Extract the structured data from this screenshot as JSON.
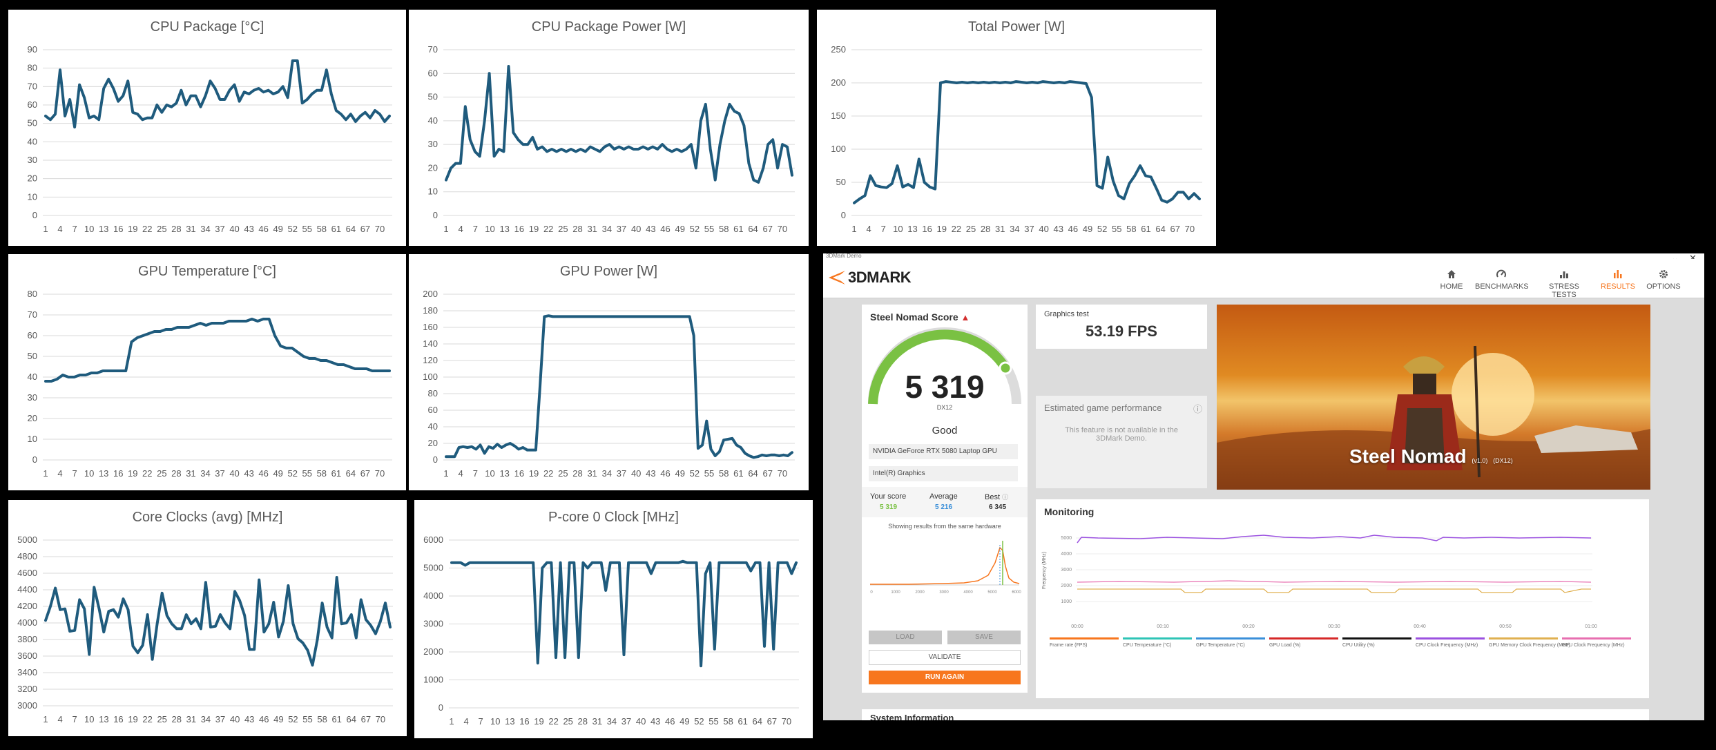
{
  "charts": [
    {
      "id": "cpu-package-temp",
      "title": "CPU Package [°C]",
      "ymin": 0,
      "ymax": 90,
      "ystep": 10,
      "values": [
        54,
        52,
        55,
        79,
        54,
        63,
        48,
        71,
        64,
        53,
        54,
        52,
        69,
        74,
        69,
        62,
        65,
        73,
        56,
        55,
        52,
        53,
        53,
        60,
        56,
        60,
        59,
        61,
        68,
        60,
        65,
        65,
        59,
        65,
        73,
        69,
        63,
        63,
        68,
        71,
        62,
        67,
        66,
        68,
        69,
        67,
        68,
        66,
        67,
        70,
        64,
        84,
        84,
        61,
        63,
        66,
        68,
        68,
        79,
        66,
        57,
        55,
        52,
        55,
        51,
        54,
        56,
        53,
        57,
        55,
        51,
        54
      ]
    },
    {
      "id": "cpu-package-power",
      "title": "CPU Package Power [W]",
      "ymin": 0,
      "ymax": 70,
      "ystep": 10,
      "values": [
        15,
        20,
        22,
        22,
        46,
        32,
        27,
        25,
        40,
        60,
        25,
        28,
        27,
        63,
        35,
        32,
        30,
        30,
        33,
        28,
        29,
        27,
        28,
        27,
        28,
        27,
        28,
        27,
        28,
        27,
        29,
        28,
        27,
        29,
        30,
        28,
        29,
        28,
        29,
        28,
        28,
        29,
        28,
        29,
        28,
        30,
        28,
        27,
        28,
        27,
        28,
        30,
        20,
        40,
        47,
        28,
        15,
        30,
        40,
        47,
        44,
        43,
        38,
        22,
        15,
        14,
        20,
        30,
        32,
        20,
        30,
        29,
        17
      ]
    },
    {
      "id": "total-power",
      "title": "Total Power [W]",
      "ymin": 0,
      "ymax": 250,
      "ystep": 50,
      "values": [
        19,
        25,
        30,
        60,
        45,
        43,
        42,
        48,
        75,
        43,
        47,
        42,
        85,
        50,
        43,
        40,
        200,
        202,
        201,
        200,
        201,
        200,
        201,
        200,
        201,
        200,
        201,
        200,
        201,
        200,
        202,
        201,
        200,
        201,
        200,
        202,
        201,
        200,
        201,
        200,
        202,
        201,
        200,
        199,
        178,
        45,
        41,
        88,
        52,
        30,
        25,
        48,
        60,
        75,
        60,
        58,
        41,
        23,
        20,
        25,
        35,
        35,
        25,
        33,
        25
      ]
    },
    {
      "id": "gpu-temp",
      "title": "GPU Temperature [°C]",
      "ymin": 0,
      "ymax": 80,
      "ystep": 10,
      "values": [
        38,
        38,
        39,
        41,
        40,
        40,
        41,
        41,
        42,
        42,
        43,
        43,
        43,
        43,
        43,
        57,
        59,
        60,
        61,
        62,
        62,
        63,
        63,
        64,
        64,
        64,
        65,
        66,
        65,
        66,
        66,
        66,
        67,
        67,
        67,
        67,
        68,
        67,
        68,
        68,
        60,
        55,
        54,
        54,
        52,
        50,
        49,
        49,
        48,
        48,
        47,
        46,
        46,
        45,
        44,
        44,
        44,
        43,
        43,
        43,
        43
      ]
    },
    {
      "id": "gpu-power",
      "title": "GPU Power [W]",
      "ymin": 0,
      "ymax": 200,
      "ystep": 20,
      "values": [
        4,
        4,
        4,
        15,
        16,
        15,
        16,
        13,
        18,
        8,
        16,
        14,
        19,
        15,
        18,
        20,
        17,
        13,
        15,
        12,
        12,
        12,
        90,
        173,
        174,
        173,
        173,
        173,
        173,
        173,
        173,
        173,
        173,
        173,
        173,
        173,
        173,
        173,
        173,
        173,
        173,
        173,
        173,
        173,
        173,
        173,
        173,
        173,
        173,
        173,
        173,
        173,
        173,
        173,
        173,
        173,
        173,
        173,
        150,
        14,
        18,
        47,
        13,
        5,
        10,
        24,
        25,
        26,
        18,
        15,
        8,
        5,
        3,
        4,
        6,
        5,
        6,
        6,
        5,
        6,
        5,
        9
      ]
    },
    {
      "id": "core-clocks",
      "title": "Core Clocks (avg) [MHz]",
      "ymin": 3000,
      "ymax": 5000,
      "ystep": 200,
      "values": [
        4030,
        4200,
        4420,
        4160,
        4170,
        3900,
        3910,
        4280,
        4170,
        3620,
        4430,
        4180,
        3890,
        4140,
        4160,
        4070,
        4290,
        4160,
        3720,
        3640,
        3730,
        4100,
        3560,
        3990,
        4360,
        4090,
        3990,
        3930,
        3930,
        4100,
        3990,
        4050,
        3930,
        4490,
        3950,
        3960,
        4100,
        4000,
        3930,
        4380,
        4270,
        4090,
        3680,
        3680,
        4520,
        3890,
        3990,
        4250,
        3830,
        4020,
        4450,
        3990,
        3810,
        3760,
        3670,
        3490,
        3800,
        4240,
        3950,
        3820,
        4550,
        3990,
        4000,
        4100,
        3820,
        4280,
        4040,
        3970,
        3870,
        4020,
        4240,
        3950
      ]
    },
    {
      "id": "pcore0-clock",
      "title": "P-core 0 Clock [MHz]",
      "ymin": 0,
      "ymax": 6000,
      "ystep": 1000,
      "values": [
        5190,
        5190,
        5190,
        5100,
        5190,
        5190,
        5190,
        5190,
        5190,
        5190,
        5190,
        5190,
        5190,
        5190,
        5190,
        5190,
        5190,
        5190,
        5190,
        1600,
        5000,
        5190,
        5190,
        1800,
        5190,
        1800,
        5190,
        5190,
        1800,
        5190,
        5000,
        5190,
        5190,
        5190,
        4200,
        5190,
        5190,
        5190,
        1900,
        5190,
        5190,
        5190,
        5190,
        5190,
        4800,
        5190,
        5190,
        5190,
        5190,
        5190,
        5190,
        5240,
        5190,
        5190,
        5190,
        1500,
        4800,
        5190,
        2100,
        5190,
        5190,
        5190,
        5190,
        5190,
        5190,
        5190,
        4900,
        5190,
        5190,
        2200,
        5190,
        2100,
        5190,
        5190,
        5190,
        4800,
        5190
      ]
    }
  ],
  "app": {
    "window_title": "3DMark Demo",
    "brand": "3DMARK",
    "nav": [
      {
        "label": "HOME",
        "icon": "home-icon"
      },
      {
        "label": "BENCHMARKS",
        "icon": "benchmarks-icon"
      },
      {
        "label": "STRESS TESTS",
        "icon": "stress-tests-icon"
      },
      {
        "label": "RESULTS",
        "icon": "results-icon",
        "active": true
      },
      {
        "label": "OPTIONS",
        "icon": "gear-icon"
      }
    ],
    "score_card": {
      "title": "Steel Nomad Score",
      "score": "5 319",
      "api": "DX12",
      "rating": "Good",
      "gpu": "NVIDIA GeForce RTX 5080 Laptop GPU",
      "cpu": "Intel(R) Graphics",
      "your_score_label": "Your score",
      "your_score": "5 319",
      "average_label": "Average",
      "average": "5 216",
      "best_label": "Best",
      "best": "6 345",
      "same_hw_text": "Showing results from the same hardware",
      "load": "LOAD",
      "save": "SAVE",
      "validate": "VALIDATE",
      "run_again": "RUN AGAIN",
      "histogram_ticks": [
        "0",
        "1000",
        "2000",
        "3000",
        "4000",
        "5000",
        "6000"
      ]
    },
    "graphics_test": {
      "label": "Graphics test",
      "fps": "53.19 FPS"
    },
    "estimated": {
      "title": "Estimated game performance",
      "message": "This feature is not available in the 3DMark Demo."
    },
    "banner": {
      "title": "Steel Nomad",
      "version": "(v1.0)",
      "api": "(DX12)"
    },
    "monitoring": {
      "title": "Monitoring",
      "y_label": "Frequency (MHz)",
      "y_ticks": [
        "5000",
        "4000",
        "3000",
        "2000",
        "1000"
      ],
      "x_ticks": [
        "00:00",
        "00:10",
        "00:20",
        "00:30",
        "00:40",
        "00:50",
        "01:00"
      ],
      "legend": [
        {
          "label": "Frame rate (FPS)",
          "color": "#f7761e"
        },
        {
          "label": "CPU Temperature (°C)",
          "color": "#2ec4b6"
        },
        {
          "label": "GPU Temperature (°C)",
          "color": "#3a8fd9"
        },
        {
          "label": "GPU Load (%)",
          "color": "#d62828"
        },
        {
          "label": "CPU Utility (%)",
          "color": "#111111"
        },
        {
          "label": "CPU Clock Frequency (MHz)",
          "color": "#9b51e0"
        },
        {
          "label": "GPU Memory Clock Frequency (MHz)",
          "color": "#e0b050"
        },
        {
          "label": "GPU Clock Frequency (MHz)",
          "color": "#e76fb0"
        }
      ]
    },
    "system_info": "System Information"
  }
}
